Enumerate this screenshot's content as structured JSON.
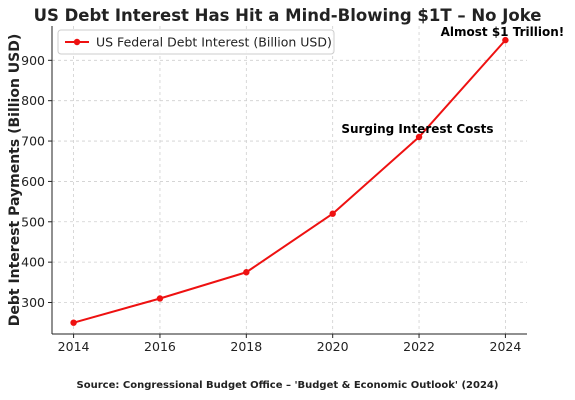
{
  "header": {
    "title": "US Debt Interest Has Hit a Mind-Blowing $1T – No Joke"
  },
  "footer": {
    "source": "Source: Congressional Budget Office – 'Budget & Economic Outlook' (2024)"
  },
  "chart_data": {
    "type": "line",
    "title": "US Debt Interest Has Hit a Mind-Blowing $1T – No Joke",
    "xlabel": "",
    "ylabel": "Debt Interest Payments (Billion USD)",
    "x": [
      2014,
      2016,
      2018,
      2020,
      2022,
      2024
    ],
    "series": [
      {
        "name": "US Federal Debt Interest (Billion USD)",
        "values": [
          250,
          310,
          375,
          520,
          710,
          950
        ],
        "color": "#ee1111"
      }
    ],
    "xticks": [
      "2014",
      "2016",
      "2018",
      "2020",
      "2022",
      "2024"
    ],
    "yticks": [
      "300",
      "400",
      "500",
      "600",
      "700",
      "800",
      "900"
    ],
    "xlim": [
      2013.5,
      2024.5
    ],
    "ylim": [
      222,
      985
    ],
    "grid": true,
    "legend": "top-left",
    "annotations": [
      {
        "text": "Surging Interest Costs",
        "x": 2020.2,
        "y": 710
      },
      {
        "text": "Almost $1 Trillion!",
        "x": 2022.5,
        "y": 950
      }
    ]
  }
}
